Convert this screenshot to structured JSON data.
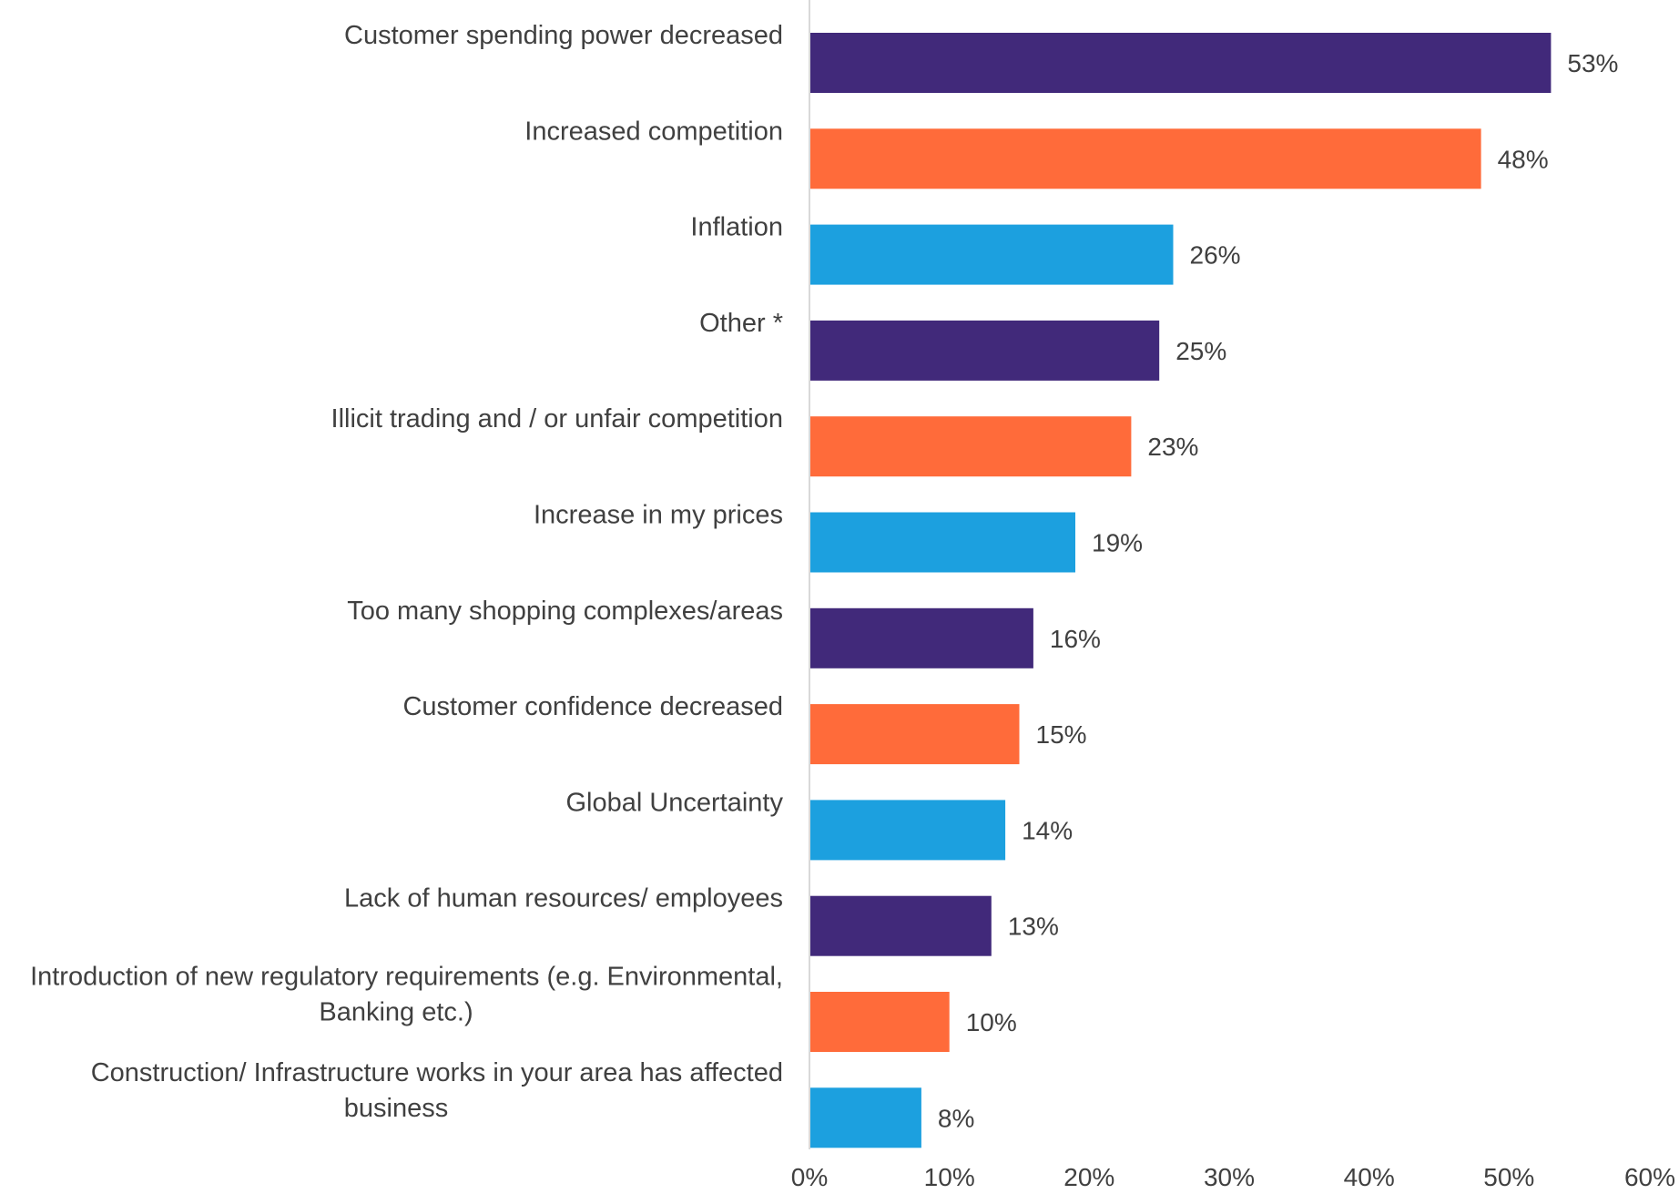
{
  "chart_data": {
    "type": "bar",
    "orientation": "horizontal",
    "categories": [
      [
        "Customer spending power decreased"
      ],
      [
        "Increased competition"
      ],
      [
        "Inflation"
      ],
      [
        "Other *"
      ],
      [
        "Illicit trading and / or unfair competition"
      ],
      [
        "Increase in my prices"
      ],
      [
        "Too many shopping complexes/areas"
      ],
      [
        "Customer confidence decreased"
      ],
      [
        "Global Uncertainty"
      ],
      [
        "Lack of human resources/ employees"
      ],
      [
        "Introduction of new regulatory requirements (e.g. Environmental,",
        "Banking etc.)"
      ],
      [
        "Construction/ Infrastructure works in your area has affected",
        "business"
      ]
    ],
    "values": [
      53,
      48,
      26,
      25,
      23,
      19,
      16,
      15,
      14,
      13,
      10,
      8
    ],
    "value_labels": [
      "53%",
      "48%",
      "26%",
      "25%",
      "23%",
      "19%",
      "16%",
      "15%",
      "14%",
      "13%",
      "10%",
      "8%"
    ],
    "bar_colors": [
      "#41297a",
      "#ff6b3a",
      "#1ca0df",
      "#41297a",
      "#ff6b3a",
      "#1ca0df",
      "#41297a",
      "#ff6b3a",
      "#1ca0df",
      "#41297a",
      "#ff6b3a",
      "#1ca0df"
    ],
    "x_ticks": [
      0,
      10,
      20,
      30,
      40,
      50,
      60
    ],
    "x_tick_labels": [
      "0%",
      "10%",
      "20%",
      "30%",
      "40%",
      "50%",
      "60%"
    ],
    "xlim": [
      0,
      60
    ],
    "grid": false,
    "axis_color": "#d9d9d9",
    "text_color": "#404040"
  }
}
